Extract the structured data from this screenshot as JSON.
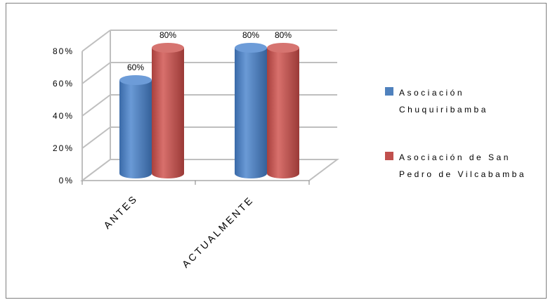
{
  "chart_data": {
    "type": "bar",
    "categories": [
      "ANTES",
      "ACTUALMENTE"
    ],
    "series": [
      {
        "name": "Asociación Chuquiribamba",
        "values": [
          60,
          80
        ],
        "labels": [
          "60%",
          "80%"
        ],
        "color": "#4f81bd"
      },
      {
        "name": "Asociación de San Pedro de Vilcabamba",
        "values": [
          80,
          80
        ],
        "labels": [
          "80%",
          "80%"
        ],
        "color": "#c0504d"
      }
    ],
    "yticks": [
      "0%",
      "20%",
      "40%",
      "60%",
      "80%"
    ],
    "ylim": [
      0,
      80
    ],
    "legend_position": "right",
    "grid": true
  }
}
